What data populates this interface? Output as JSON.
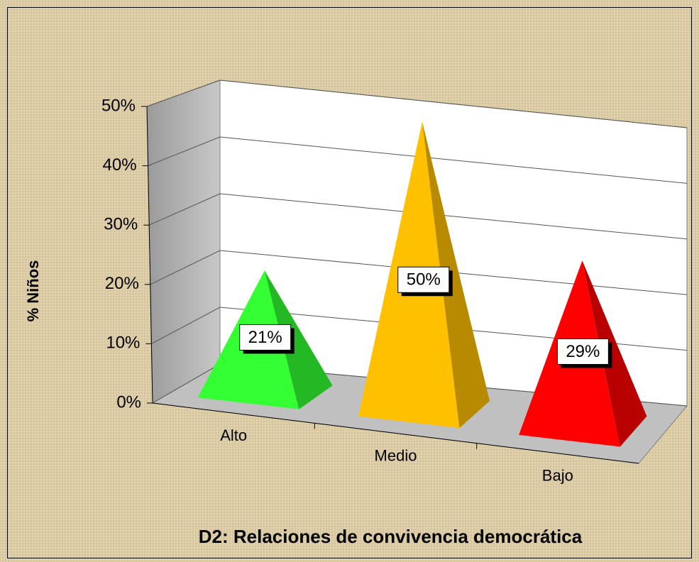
{
  "chart_data": {
    "type": "pyramid3d",
    "title": "D2: Relaciones de convivencia democrática",
    "y_label": "% Niños",
    "categories": [
      "Alto",
      "Medio",
      "Bajo"
    ],
    "values": [
      21,
      50,
      29
    ],
    "value_labels": [
      "21%",
      "50%",
      "29%"
    ],
    "colors": [
      "#33ff33",
      "#ffc000",
      "#ff0000"
    ],
    "ylim": [
      0,
      50
    ],
    "yticks": [
      {
        "value": 0,
        "label": "0%"
      },
      {
        "value": 10,
        "label": "10%"
      },
      {
        "value": 20,
        "label": "20%"
      },
      {
        "value": 30,
        "label": "30%"
      },
      {
        "value": 40,
        "label": "40%"
      },
      {
        "value": 50,
        "label": "50%"
      }
    ],
    "grid": true
  }
}
